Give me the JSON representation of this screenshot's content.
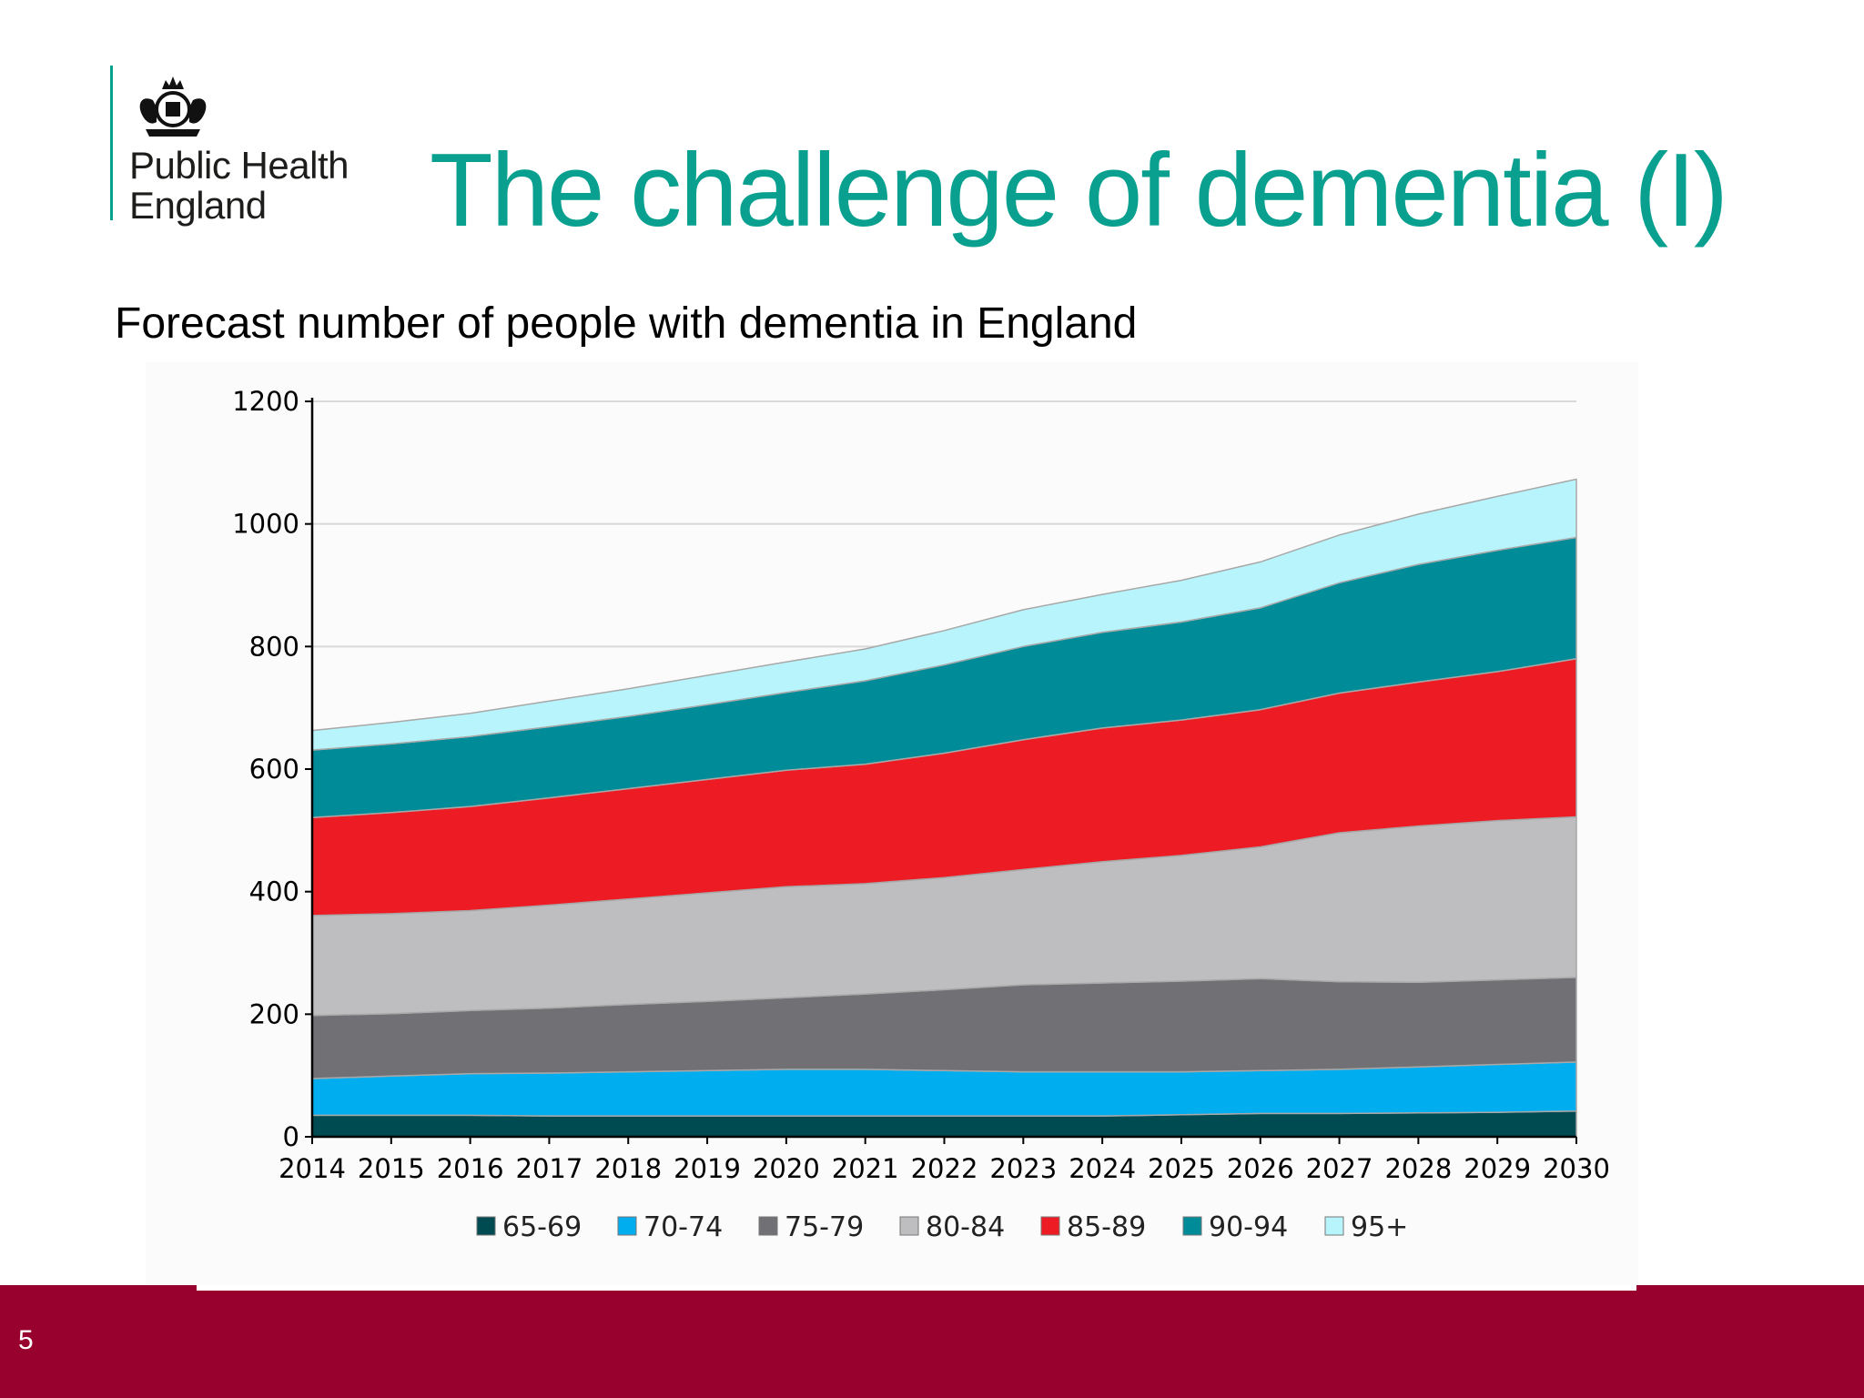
{
  "header": {
    "org_line1": "Public Health",
    "org_line2": "England",
    "title": "The challenge of dementia (I)"
  },
  "subtitle": "Forecast number of people with dementia in England",
  "footer": {
    "page_number": "5"
  },
  "colors": {
    "title": "#0aa08f",
    "footer": "#98002e",
    "65-69": "#004b51",
    "70-74": "#00adef",
    "75-79": "#707075",
    "80-84": "#bebec0",
    "85-89": "#ed1c24",
    "90-94": "#008b99",
    "95+": "#b8f4fb"
  },
  "chart_data": {
    "type": "area",
    "stacked": true,
    "title": "",
    "xlabel": "",
    "ylabel": "",
    "ylim": [
      0,
      1200
    ],
    "yticks": [
      0,
      200,
      400,
      600,
      800,
      1000,
      1200
    ],
    "grid": true,
    "legend": "bottom",
    "x": [
      "2014",
      "2015",
      "2016",
      "2017",
      "2018",
      "2019",
      "2020",
      "2021",
      "2022",
      "2023",
      "2024",
      "2025",
      "2026",
      "2027",
      "2028",
      "2029",
      "2030"
    ],
    "series": [
      {
        "name": "65-69",
        "color": "#004b51",
        "values": [
          35,
          35,
          35,
          34,
          34,
          34,
          34,
          34,
          34,
          34,
          34,
          36,
          38,
          38,
          39,
          40,
          42
        ]
      },
      {
        "name": "70-74",
        "color": "#00adef",
        "values": [
          60,
          64,
          68,
          70,
          72,
          74,
          76,
          76,
          74,
          72,
          72,
          70,
          70,
          72,
          75,
          78,
          80
        ]
      },
      {
        "name": "75-79",
        "color": "#707075",
        "values": [
          103,
          102,
          103,
          106,
          110,
          113,
          117,
          123,
          132,
          142,
          145,
          148,
          150,
          143,
          138,
          138,
          138
        ]
      },
      {
        "name": "80-84",
        "color": "#bebec0",
        "values": [
          163,
          163,
          163,
          168,
          172,
          177,
          181,
          180,
          183,
          188,
          198,
          205,
          215,
          243,
          255,
          260,
          262
        ]
      },
      {
        "name": "85-89",
        "color": "#ed1c24",
        "values": [
          160,
          165,
          170,
          175,
          180,
          185,
          190,
          195,
          203,
          212,
          218,
          221,
          224,
          228,
          235,
          243,
          258
        ]
      },
      {
        "name": "90-94",
        "color": "#008b99",
        "values": [
          110,
          112,
          114,
          116,
          118,
          122,
          127,
          136,
          144,
          152,
          156,
          160,
          166,
          180,
          192,
          198,
          198
        ]
      },
      {
        "name": "95+",
        "color": "#b8f4fb",
        "values": [
          32,
          35,
          38,
          42,
          45,
          48,
          50,
          52,
          56,
          60,
          62,
          68,
          75,
          78,
          82,
          88,
          95
        ]
      }
    ]
  }
}
